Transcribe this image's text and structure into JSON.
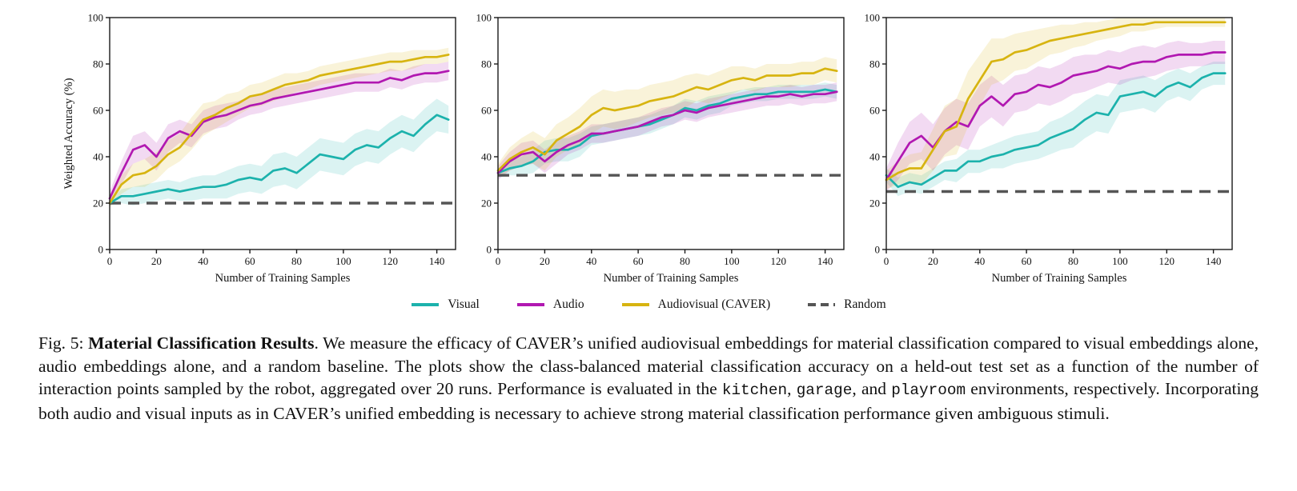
{
  "legend": {
    "items": [
      {
        "label": "Visual",
        "color": "#1CB2AC",
        "dash": false
      },
      {
        "label": "Audio",
        "color": "#B118B1",
        "dash": false
      },
      {
        "label": "Audiovisual (CAVER)",
        "color": "#D7B410",
        "dash": false
      },
      {
        "label": "Random",
        "color": "#555555",
        "dash": true
      }
    ]
  },
  "chart_data": [
    {
      "type": "line",
      "environment": "kitchen",
      "xlabel": "Number of Training Samples",
      "ylabel": "Weighted Accuracy (%)",
      "xlim": [
        0,
        148
      ],
      "ylim": [
        0,
        100
      ],
      "xticks": [
        0,
        20,
        40,
        60,
        80,
        100,
        120,
        140
      ],
      "yticks": [
        0,
        20,
        40,
        60,
        80,
        100
      ],
      "x": [
        0,
        5,
        10,
        15,
        20,
        25,
        30,
        35,
        40,
        45,
        50,
        55,
        60,
        65,
        70,
        75,
        80,
        85,
        90,
        95,
        100,
        105,
        110,
        115,
        120,
        125,
        130,
        135,
        140,
        145
      ],
      "series": [
        {
          "name": "Visual",
          "color": "#1CB2AC",
          "values": [
            20,
            23,
            23,
            24,
            25,
            26,
            25,
            26,
            27,
            27,
            28,
            30,
            31,
            30,
            34,
            35,
            33,
            37,
            41,
            40,
            39,
            43,
            45,
            44,
            48,
            51,
            49,
            54,
            58,
            56
          ],
          "band": [
            1,
            3,
            4,
            4,
            4,
            4,
            4,
            5,
            5,
            5,
            6,
            6,
            6,
            6,
            7,
            7,
            7,
            7,
            7,
            7,
            7,
            7,
            7,
            7,
            7,
            7,
            7,
            7,
            7,
            6
          ]
        },
        {
          "name": "Audio",
          "color": "#B118B1",
          "values": [
            22,
            33,
            43,
            45,
            40,
            48,
            51,
            49,
            55,
            57,
            58,
            60,
            62,
            63,
            65,
            66,
            67,
            68,
            69,
            70,
            71,
            72,
            72,
            72,
            74,
            73,
            75,
            76,
            76,
            77
          ],
          "band": [
            3,
            5,
            6,
            6,
            6,
            6,
            5,
            5,
            5,
            5,
            5,
            4,
            4,
            4,
            4,
            4,
            4,
            4,
            4,
            4,
            4,
            4,
            4,
            4,
            4,
            4,
            4,
            4,
            4,
            4
          ]
        },
        {
          "name": "Audiovisual (CAVER)",
          "color": "#D7B410",
          "values": [
            20,
            28,
            32,
            33,
            36,
            41,
            44,
            50,
            56,
            58,
            61,
            63,
            66,
            67,
            69,
            71,
            72,
            73,
            75,
            76,
            77,
            78,
            79,
            80,
            81,
            81,
            82,
            83,
            83,
            84
          ],
          "band": [
            2,
            4,
            5,
            6,
            6,
            6,
            6,
            7,
            7,
            6,
            6,
            5,
            5,
            5,
            5,
            5,
            4,
            4,
            4,
            4,
            4,
            4,
            4,
            4,
            4,
            4,
            4,
            3,
            3,
            3
          ]
        }
      ],
      "baseline": {
        "name": "Random",
        "value": 20,
        "color": "#555555",
        "dash": true
      }
    },
    {
      "type": "line",
      "environment": "garage",
      "xlabel": "Number of Training Samples",
      "ylabel": "",
      "xlim": [
        0,
        148
      ],
      "ylim": [
        0,
        100
      ],
      "xticks": [
        0,
        20,
        40,
        60,
        80,
        100,
        120,
        140
      ],
      "yticks": [
        0,
        20,
        40,
        60,
        80,
        100
      ],
      "x": [
        0,
        5,
        10,
        15,
        20,
        25,
        30,
        35,
        40,
        45,
        50,
        55,
        60,
        65,
        70,
        75,
        80,
        85,
        90,
        95,
        100,
        105,
        110,
        115,
        120,
        125,
        130,
        135,
        140,
        145
      ],
      "series": [
        {
          "name": "Visual",
          "color": "#1CB2AC",
          "values": [
            33,
            35,
            36,
            38,
            42,
            43,
            43,
            45,
            49,
            50,
            51,
            52,
            53,
            54,
            56,
            58,
            61,
            60,
            62,
            63,
            65,
            66,
            67,
            67,
            68,
            68,
            68,
            68,
            69,
            68
          ],
          "band": [
            2,
            3,
            4,
            5,
            5,
            5,
            5,
            5,
            4,
            4,
            4,
            4,
            4,
            4,
            4,
            4,
            4,
            4,
            4,
            4,
            3,
            3,
            3,
            3,
            3,
            3,
            3,
            3,
            3,
            3
          ]
        },
        {
          "name": "Audio",
          "color": "#B118B1",
          "values": [
            33,
            38,
            41,
            42,
            38,
            42,
            45,
            47,
            50,
            50,
            51,
            52,
            53,
            55,
            57,
            58,
            60,
            59,
            61,
            62,
            63,
            64,
            65,
            66,
            66,
            67,
            66,
            67,
            67,
            68
          ],
          "band": [
            3,
            4,
            5,
            5,
            5,
            5,
            4,
            4,
            4,
            4,
            4,
            4,
            4,
            4,
            4,
            4,
            4,
            4,
            4,
            4,
            4,
            4,
            4,
            4,
            4,
            4,
            4,
            4,
            4,
            4
          ]
        },
        {
          "name": "Audiovisual (CAVER)",
          "color": "#D7B410",
          "values": [
            34,
            39,
            42,
            44,
            41,
            47,
            50,
            53,
            58,
            61,
            60,
            61,
            62,
            64,
            65,
            66,
            68,
            70,
            69,
            71,
            73,
            74,
            73,
            75,
            75,
            75,
            76,
            76,
            78,
            77
          ],
          "band": [
            3,
            5,
            6,
            7,
            7,
            7,
            7,
            8,
            8,
            8,
            8,
            8,
            7,
            7,
            7,
            7,
            7,
            6,
            6,
            6,
            6,
            5,
            5,
            5,
            5,
            5,
            5,
            5,
            5,
            5
          ]
        }
      ],
      "baseline": {
        "name": "Random",
        "value": 32,
        "color": "#555555",
        "dash": true
      }
    },
    {
      "type": "line",
      "environment": "playroom",
      "xlabel": "Number of Training Samples",
      "ylabel": "",
      "xlim": [
        0,
        148
      ],
      "ylim": [
        0,
        100
      ],
      "xticks": [
        0,
        20,
        40,
        60,
        80,
        100,
        120,
        140
      ],
      "yticks": [
        0,
        20,
        40,
        60,
        80,
        100
      ],
      "x": [
        0,
        5,
        10,
        15,
        20,
        25,
        30,
        35,
        40,
        45,
        50,
        55,
        60,
        65,
        70,
        75,
        80,
        85,
        90,
        95,
        100,
        105,
        110,
        115,
        120,
        125,
        130,
        135,
        140,
        145
      ],
      "series": [
        {
          "name": "Visual",
          "color": "#1CB2AC",
          "values": [
            32,
            27,
            29,
            28,
            31,
            34,
            34,
            38,
            38,
            40,
            41,
            43,
            44,
            45,
            48,
            50,
            52,
            56,
            59,
            58,
            66,
            67,
            68,
            66,
            70,
            72,
            70,
            74,
            76,
            76
          ],
          "band": [
            3,
            4,
            4,
            4,
            4,
            4,
            5,
            5,
            5,
            5,
            6,
            6,
            6,
            6,
            7,
            7,
            8,
            8,
            8,
            8,
            7,
            7,
            7,
            7,
            6,
            6,
            6,
            5,
            5,
            5
          ]
        },
        {
          "name": "Audio",
          "color": "#B118B1",
          "values": [
            30,
            38,
            46,
            49,
            44,
            51,
            55,
            53,
            62,
            66,
            62,
            67,
            68,
            71,
            70,
            72,
            75,
            76,
            77,
            79,
            78,
            80,
            81,
            81,
            83,
            84,
            84,
            84,
            85,
            85
          ],
          "band": [
            5,
            8,
            9,
            10,
            10,
            10,
            10,
            10,
            9,
            9,
            9,
            8,
            8,
            8,
            8,
            8,
            8,
            8,
            7,
            7,
            7,
            7,
            7,
            6,
            6,
            6,
            5,
            5,
            5,
            5
          ]
        },
        {
          "name": "Audiovisual (CAVER)",
          "color": "#D7B410",
          "values": [
            30,
            33,
            35,
            35,
            43,
            51,
            53,
            65,
            73,
            81,
            82,
            85,
            86,
            88,
            90,
            91,
            92,
            93,
            94,
            95,
            96,
            97,
            97,
            98,
            98,
            98,
            98,
            98,
            98,
            98
          ],
          "band": [
            4,
            5,
            6,
            7,
            9,
            11,
            12,
            12,
            11,
            10,
            9,
            8,
            8,
            7,
            6,
            6,
            5,
            5,
            4,
            4,
            4,
            3,
            3,
            3,
            2,
            2,
            2,
            2,
            2,
            2
          ]
        }
      ],
      "baseline": {
        "name": "Random",
        "value": 25,
        "color": "#555555",
        "dash": true
      }
    }
  ],
  "caption": {
    "fig_label": "Fig. 5: ",
    "title": "Material Classification Results",
    "body_1": ". We measure the efficacy of CAVER’s unified audiovisual embeddings for material classification compared to visual embeddings alone, audio embeddings alone, and a random baseline. The plots show the class-balanced material classification accuracy on a held-out test set as a function of the number of interaction points sampled by the robot, aggregated over 20 runs. Performance is evaluated in the ",
    "env_kitchen": "kitchen",
    "sep_1": ", ",
    "env_garage": "garage",
    "sep_2": ", and ",
    "env_playroom": "playroom",
    "body_2": " environments, respectively. Incorporating both audio and visual inputs as in CAVER’s unified embedding is necessary to achieve strong material classification performance given ambiguous stimuli."
  }
}
